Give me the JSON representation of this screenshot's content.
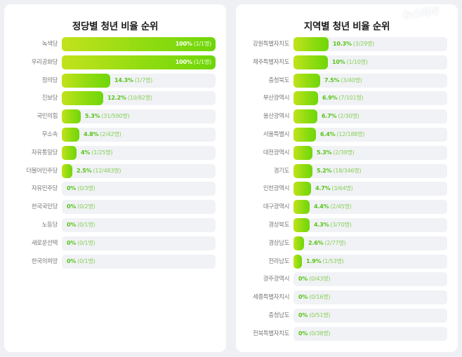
{
  "watermark": "뉴스타파",
  "colors": {
    "background": "#eef0f4",
    "card": "#ffffff",
    "track": "#f1f2f5",
    "bar_gradient_start": "#c2e21c",
    "bar_gradient_end": "#6fd60a",
    "value_text": "#56c41a",
    "label_text": "#7a7a7a",
    "title_text": "#1a1a1a"
  },
  "party": {
    "title": "정당별 청년 비율 순위",
    "rows": [
      {
        "label": "녹색당",
        "pct": "100%",
        "count": "(1/1명)",
        "value": 100
      },
      {
        "label": "우리공화당",
        "pct": "100%",
        "count": "(1/1명)",
        "value": 100
      },
      {
        "label": "정의당",
        "pct": "14.3%",
        "count": "(1/7명)",
        "value": 14.3
      },
      {
        "label": "진보당",
        "pct": "12.2%",
        "count": "(10/82명)",
        "value": 12.2
      },
      {
        "label": "국민의힘",
        "pct": "5.3%",
        "count": "(31/590명)",
        "value": 5.3
      },
      {
        "label": "무소속",
        "pct": "4.8%",
        "count": "(2/42명)",
        "value": 4.8
      },
      {
        "label": "자유통일당",
        "pct": "4%",
        "count": "(1/25명)",
        "value": 4
      },
      {
        "label": "더불어민주당",
        "pct": "2.5%",
        "count": "(12/483명)",
        "value": 2.5
      },
      {
        "label": "자유민주당",
        "pct": "0%",
        "count": "(0/3명)",
        "value": 0
      },
      {
        "label": "한국국민당",
        "pct": "0%",
        "count": "(0/2명)",
        "value": 0
      },
      {
        "label": "노동당",
        "pct": "0%",
        "count": "(0/1명)",
        "value": 0
      },
      {
        "label": "새로운선택",
        "pct": "0%",
        "count": "(0/1명)",
        "value": 0
      },
      {
        "label": "한국의희망",
        "pct": "0%",
        "count": "(0/1명)",
        "value": 0
      }
    ]
  },
  "region": {
    "title": "지역별 청년 비율 순위",
    "rows": [
      {
        "label": "강원특별자치도",
        "pct": "10.3%",
        "count": "(3/29명)",
        "value": 10.3
      },
      {
        "label": "제주특별자치도",
        "pct": "10%",
        "count": "(1/10명)",
        "value": 10
      },
      {
        "label": "충청북도",
        "pct": "7.5%",
        "count": "(3/40명)",
        "value": 7.5
      },
      {
        "label": "부산광역시",
        "pct": "6.9%",
        "count": "(7/101명)",
        "value": 6.9
      },
      {
        "label": "울산광역시",
        "pct": "6.7%",
        "count": "(2/30명)",
        "value": 6.7
      },
      {
        "label": "서울특별시",
        "pct": "6.4%",
        "count": "(12/188명)",
        "value": 6.4
      },
      {
        "label": "대전광역시",
        "pct": "5.3%",
        "count": "(2/38명)",
        "value": 5.3
      },
      {
        "label": "경기도",
        "pct": "5.2%",
        "count": "(18/346명)",
        "value": 5.2
      },
      {
        "label": "인천광역시",
        "pct": "4.7%",
        "count": "(3/64명)",
        "value": 4.7
      },
      {
        "label": "대구광역시",
        "pct": "4.4%",
        "count": "(2/45명)",
        "value": 4.4
      },
      {
        "label": "경상북도",
        "pct": "4.3%",
        "count": "(3/70명)",
        "value": 4.3
      },
      {
        "label": "경상남도",
        "pct": "2.6%",
        "count": "(2/77명)",
        "value": 2.6
      },
      {
        "label": "전라남도",
        "pct": "1.9%",
        "count": "(1/53명)",
        "value": 1.9
      },
      {
        "label": "광주광역시",
        "pct": "0%",
        "count": "(0/43명)",
        "value": 0
      },
      {
        "label": "세종특별자치시",
        "pct": "0%",
        "count": "(0/16명)",
        "value": 0
      },
      {
        "label": "충청남도",
        "pct": "0%",
        "count": "(0/51명)",
        "value": 0
      },
      {
        "label": "전북특별자치도",
        "pct": "0%",
        "count": "(0/38명)",
        "value": 0
      }
    ]
  },
  "chart_data": [
    {
      "type": "bar",
      "orientation": "horizontal",
      "title": "정당별 청년 비율 순위",
      "xlabel": "",
      "ylabel": "",
      "xlim": [
        0,
        100
      ],
      "categories": [
        "녹색당",
        "우리공화당",
        "정의당",
        "진보당",
        "국민의힘",
        "무소속",
        "자유통일당",
        "더불어민주당",
        "자유민주당",
        "한국국민당",
        "노동당",
        "새로운선택",
        "한국의희망"
      ],
      "values": [
        100,
        100,
        14.3,
        12.2,
        5.3,
        4.8,
        4,
        2.5,
        0,
        0,
        0,
        0,
        0
      ],
      "annotations": [
        "(1/1명)",
        "(1/1명)",
        "(1/7명)",
        "(10/82명)",
        "(31/590명)",
        "(2/42명)",
        "(1/25명)",
        "(12/483명)",
        "(0/3명)",
        "(0/2명)",
        "(0/1명)",
        "(0/1명)",
        "(0/1명)"
      ],
      "grid": false,
      "legend": null
    },
    {
      "type": "bar",
      "orientation": "horizontal",
      "title": "지역별 청년 비율 순위",
      "xlabel": "",
      "ylabel": "",
      "xlim": [
        0,
        100
      ],
      "categories": [
        "강원특별자치도",
        "제주특별자치도",
        "충청북도",
        "부산광역시",
        "울산광역시",
        "서울특별시",
        "대전광역시",
        "경기도",
        "인천광역시",
        "대구광역시",
        "경상북도",
        "경상남도",
        "전라남도",
        "광주광역시",
        "세종특별자치시",
        "충청남도",
        "전북특별자치도"
      ],
      "values": [
        10.3,
        10,
        7.5,
        6.9,
        6.7,
        6.4,
        5.3,
        5.2,
        4.7,
        4.4,
        4.3,
        2.6,
        1.9,
        0,
        0,
        0,
        0
      ],
      "annotations": [
        "(3/29명)",
        "(1/10명)",
        "(3/40명)",
        "(7/101명)",
        "(2/30명)",
        "(12/188명)",
        "(2/38명)",
        "(18/346명)",
        "(3/64명)",
        "(2/45명)",
        "(3/70명)",
        "(2/77명)",
        "(1/53명)",
        "(0/43명)",
        "(0/16명)",
        "(0/51명)",
        "(0/38명)"
      ],
      "grid": false,
      "legend": null
    }
  ]
}
